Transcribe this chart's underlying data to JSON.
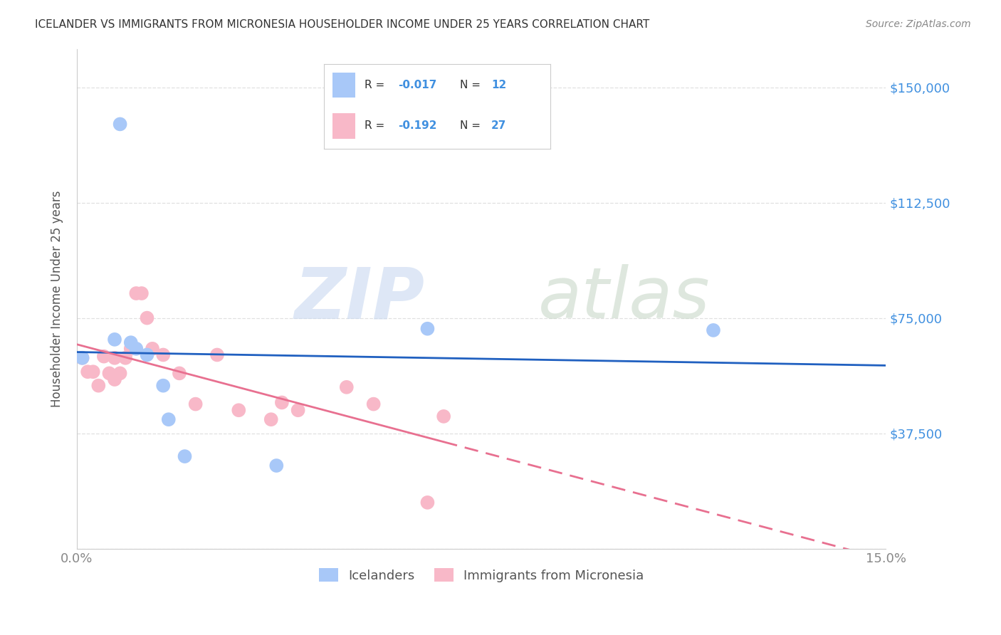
{
  "title": "ICELANDER VS IMMIGRANTS FROM MICRONESIA HOUSEHOLDER INCOME UNDER 25 YEARS CORRELATION CHART",
  "source": "Source: ZipAtlas.com",
  "ylabel": "Householder Income Under 25 years",
  "xlim": [
    0.0,
    0.15
  ],
  "ylim": [
    0,
    162500
  ],
  "yticks": [
    0,
    37500,
    75000,
    112500,
    150000
  ],
  "ytick_labels": [
    "",
    "$37,500",
    "$75,000",
    "$112,500",
    "$150,000"
  ],
  "blue_color": "#a8c8f8",
  "pink_color": "#f8b8c8",
  "line_blue": "#2060c0",
  "line_pink": "#e87090",
  "axis_label_color": "#4090e0",
  "title_color": "#333333",
  "source_color": "#888888",
  "background_color": "#ffffff",
  "grid_color": "#e0e0e0",
  "icelanders_x": [
    0.001,
    0.007,
    0.008,
    0.01,
    0.011,
    0.013,
    0.016,
    0.017,
    0.02,
    0.037,
    0.065,
    0.118
  ],
  "icelanders_y": [
    62000,
    68000,
    138000,
    67000,
    65000,
    63000,
    53000,
    42000,
    30000,
    27000,
    71500,
    71000
  ],
  "micronesia_x": [
    0.001,
    0.002,
    0.003,
    0.004,
    0.005,
    0.006,
    0.007,
    0.007,
    0.008,
    0.009,
    0.01,
    0.011,
    0.012,
    0.013,
    0.014,
    0.016,
    0.019,
    0.022,
    0.026,
    0.03,
    0.036,
    0.038,
    0.041,
    0.05,
    0.055,
    0.065,
    0.068
  ],
  "micronesia_y": [
    62000,
    57500,
    57500,
    53000,
    62500,
    57000,
    55000,
    62000,
    57000,
    62000,
    65000,
    83000,
    83000,
    75000,
    65000,
    63000,
    57000,
    47000,
    63000,
    45000,
    42000,
    47500,
    45000,
    52500,
    47000,
    15000,
    43000
  ]
}
